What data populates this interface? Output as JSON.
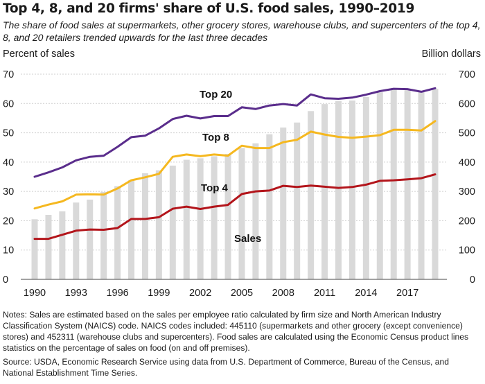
{
  "title": "Top 4, 8, and 20 firms' share of U.S. food sales, 1990–2019",
  "subtitle": "The share of food sales at supermarkets, other grocery stores, warehouse clubs, and supercenters of the top 4, 8, and 20 retailers trended upwards for the last three decades",
  "notes": "Notes: Sales are estimated based on the sales per employee ratio calculated by firm size and North American Industry Classification System (NAICS) code. NAICS codes included: 445110 (supermarkets and other grocery (except convenience) stores) and 452311 (warehouse clubs and supercenters). Food sales are calculated using the Economic Census product lines statistics on the percentage of sales on food (on and off premises).",
  "source": "Source: USDA, Economic Research Service using data from U.S. Department of Commerce, Bureau of the Census, and National Establishment Time Series.",
  "colors": {
    "top20": "#5a2d8c",
    "top8": "#f5b820",
    "top4": "#b3151b",
    "bars": "#d9d9d9",
    "grid": "#cfcfcf"
  },
  "chart_data": {
    "type": "bar",
    "title": "Top 4, 8, and 20 firms' share of U.S. food sales, 1990–2019",
    "ylabel": "Percent of sales",
    "y2label": "Billion dollars",
    "ylim": [
      0,
      70
    ],
    "y2lim": [
      0,
      700
    ],
    "yticks": [
      0,
      10,
      20,
      30,
      40,
      50,
      60,
      70
    ],
    "y2ticks": [
      0,
      100,
      200,
      300,
      400,
      500,
      600,
      700
    ],
    "xtick_labels": [
      "1990",
      "1993",
      "1996",
      "1999",
      "2002",
      "2005",
      "2008",
      "2011",
      "2014",
      "2017"
    ],
    "grid": true,
    "x": [
      1990,
      1991,
      1992,
      1993,
      1994,
      1995,
      1996,
      1997,
      1998,
      1999,
      2000,
      2001,
      2002,
      2003,
      2004,
      2005,
      2006,
      2007,
      2008,
      2009,
      2010,
      2011,
      2012,
      2013,
      2014,
      2015,
      2016,
      2017,
      2018,
      2019
    ],
    "bars": {
      "name": "Sales",
      "axis": "right",
      "values": [
        205,
        220,
        232,
        262,
        272,
        298,
        318,
        338,
        362,
        372,
        388,
        408,
        413,
        420,
        428,
        448,
        464,
        495,
        518,
        535,
        574,
        598,
        608,
        610,
        622,
        638,
        650,
        645,
        643,
        650
      ]
    },
    "series": [
      {
        "name": "Top 20",
        "axis": "left",
        "values": [
          35.0,
          36.5,
          38.2,
          40.6,
          41.8,
          42.2,
          45.2,
          48.5,
          49.0,
          51.5,
          54.7,
          55.8,
          54.9,
          55.7,
          55.7,
          58.7,
          58.1,
          59.3,
          59.8,
          59.3,
          63.1,
          61.8,
          61.6,
          62.0,
          63.0,
          64.2,
          65.0,
          64.9,
          64.0,
          65.2
        ]
      },
      {
        "name": "Top 8",
        "axis": "left",
        "values": [
          24.2,
          25.5,
          26.6,
          28.9,
          29.0,
          28.9,
          31.0,
          33.8,
          34.8,
          36.0,
          41.8,
          42.6,
          42.0,
          42.6,
          42.2,
          45.6,
          44.8,
          44.8,
          46.8,
          47.6,
          50.4,
          49.4,
          48.6,
          48.3,
          48.7,
          49.2,
          51.0,
          51.0,
          50.8,
          54.0
        ]
      },
      {
        "name": "Top 4",
        "axis": "left",
        "values": [
          13.8,
          13.8,
          15.2,
          16.6,
          17.0,
          16.9,
          17.5,
          20.6,
          20.6,
          21.2,
          24.1,
          24.8,
          24.0,
          24.8,
          25.4,
          29.1,
          30.0,
          30.3,
          31.9,
          31.5,
          32.0,
          31.6,
          31.2,
          31.5,
          32.3,
          33.6,
          33.8,
          34.1,
          34.5,
          35.8
        ]
      }
    ]
  }
}
